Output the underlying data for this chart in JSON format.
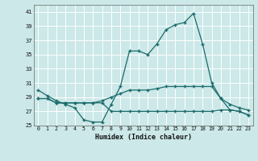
{
  "xlabel": "Humidex (Indice chaleur)",
  "background_color": "#cce8e8",
  "grid_color": "#ffffff",
  "line_color": "#1a6b6b",
  "xlim": [
    -0.5,
    23.5
  ],
  "ylim": [
    25,
    42
  ],
  "yticks": [
    25,
    27,
    29,
    31,
    33,
    35,
    37,
    39,
    41
  ],
  "xticks": [
    0,
    1,
    2,
    3,
    4,
    5,
    6,
    7,
    8,
    9,
    10,
    11,
    12,
    13,
    14,
    15,
    16,
    17,
    18,
    19,
    20,
    21,
    22,
    23
  ],
  "curve1_x": [
    0,
    1,
    2,
    3,
    4,
    5,
    6,
    7,
    8,
    9,
    10,
    11,
    12,
    13,
    14,
    15,
    16,
    17,
    18,
    19,
    20,
    21,
    22,
    23
  ],
  "curve1_y": [
    30.0,
    29.2,
    28.5,
    28.0,
    27.5,
    25.8,
    25.5,
    25.5,
    28.0,
    30.5,
    35.5,
    35.5,
    35.0,
    36.5,
    38.5,
    39.2,
    39.5,
    40.8,
    36.5,
    31.0,
    28.8,
    27.2,
    27.0,
    26.5
  ],
  "curve2_x": [
    0,
    1,
    2,
    3,
    4,
    5,
    6,
    7,
    8,
    9,
    10,
    11,
    12,
    13,
    14,
    15,
    16,
    17,
    18,
    19,
    20,
    21,
    22,
    23
  ],
  "curve2_y": [
    28.8,
    28.8,
    28.2,
    28.2,
    28.2,
    28.2,
    28.2,
    28.5,
    29.0,
    29.5,
    30.0,
    30.0,
    30.0,
    30.2,
    30.5,
    30.5,
    30.5,
    30.5,
    30.5,
    30.5,
    28.8,
    28.0,
    27.5,
    27.2
  ],
  "curve3_x": [
    0,
    1,
    2,
    3,
    4,
    5,
    6,
    7,
    8,
    9,
    10,
    11,
    12,
    13,
    14,
    15,
    16,
    17,
    18,
    19,
    20,
    21,
    22,
    23
  ],
  "curve3_y": [
    28.8,
    28.8,
    28.2,
    28.2,
    28.2,
    28.2,
    28.2,
    28.2,
    27.0,
    27.0,
    27.0,
    27.0,
    27.0,
    27.0,
    27.0,
    27.0,
    27.0,
    27.0,
    27.0,
    27.0,
    27.2,
    27.2,
    27.0,
    26.5
  ]
}
